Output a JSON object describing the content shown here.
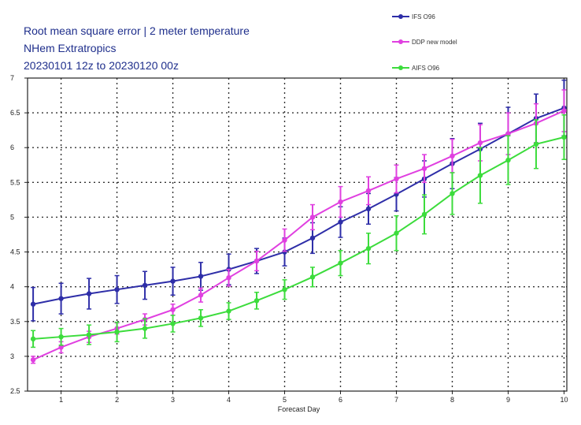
{
  "chart_data": {
    "type": "line",
    "title_lines": [
      "Root mean square error | 2 meter temperature",
      "NHem Extratropics",
      "20230101 12z to 20230120 00z"
    ],
    "xlabel": "Forecast Day",
    "ylabel": "",
    "xlim": [
      0.4,
      10.05
    ],
    "ylim": [
      2.5,
      7
    ],
    "x_ticks": [
      1,
      2,
      3,
      4,
      5,
      6,
      7,
      8,
      9,
      10
    ],
    "y_ticks": [
      2.5,
      3,
      3.5,
      4,
      4.5,
      5,
      5.5,
      6,
      6.5,
      7
    ],
    "grid": true,
    "grid_style": "dotted",
    "legend_position": "top-right",
    "x": [
      0.5,
      1,
      1.5,
      2,
      2.5,
      3,
      3.5,
      4,
      4.5,
      5,
      5.5,
      6,
      6.5,
      7,
      7.5,
      8,
      8.5,
      9,
      9.5,
      10
    ],
    "series": [
      {
        "name": "IFS O96",
        "color": "#2e2ea8",
        "values": [
          3.75,
          3.83,
          3.9,
          3.96,
          4.02,
          4.08,
          4.15,
          4.25,
          4.37,
          4.5,
          4.7,
          4.93,
          5.12,
          5.33,
          5.55,
          5.77,
          5.98,
          6.2,
          6.42,
          6.57
        ],
        "errors": [
          0.24,
          0.22,
          0.22,
          0.2,
          0.2,
          0.2,
          0.2,
          0.22,
          0.18,
          0.2,
          0.22,
          0.22,
          0.22,
          0.24,
          0.26,
          0.36,
          0.37,
          0.38,
          0.35,
          0.4
        ]
      },
      {
        "name": "DDP new model",
        "color": "#e040e0",
        "values": [
          2.95,
          3.13,
          3.28,
          3.4,
          3.53,
          3.67,
          3.88,
          4.13,
          4.37,
          4.67,
          5.0,
          5.22,
          5.38,
          5.55,
          5.7,
          5.88,
          6.07,
          6.2,
          6.35,
          6.53
        ],
        "errors": [
          0.05,
          0.08,
          0.08,
          0.08,
          0.08,
          0.08,
          0.1,
          0.12,
          0.14,
          0.16,
          0.18,
          0.22,
          0.2,
          0.2,
          0.2,
          0.24,
          0.26,
          0.3,
          0.28,
          0.3
        ]
      },
      {
        "name": "AIFS O96",
        "color": "#3cdc3c",
        "values": [
          3.25,
          3.28,
          3.31,
          3.35,
          3.4,
          3.47,
          3.55,
          3.65,
          3.8,
          3.96,
          4.14,
          4.34,
          4.55,
          4.77,
          5.04,
          5.34,
          5.6,
          5.82,
          6.05,
          6.15
        ],
        "errors": [
          0.12,
          0.12,
          0.14,
          0.14,
          0.14,
          0.12,
          0.12,
          0.12,
          0.12,
          0.14,
          0.14,
          0.18,
          0.22,
          0.25,
          0.28,
          0.3,
          0.4,
          0.35,
          0.35,
          0.32
        ]
      }
    ]
  }
}
